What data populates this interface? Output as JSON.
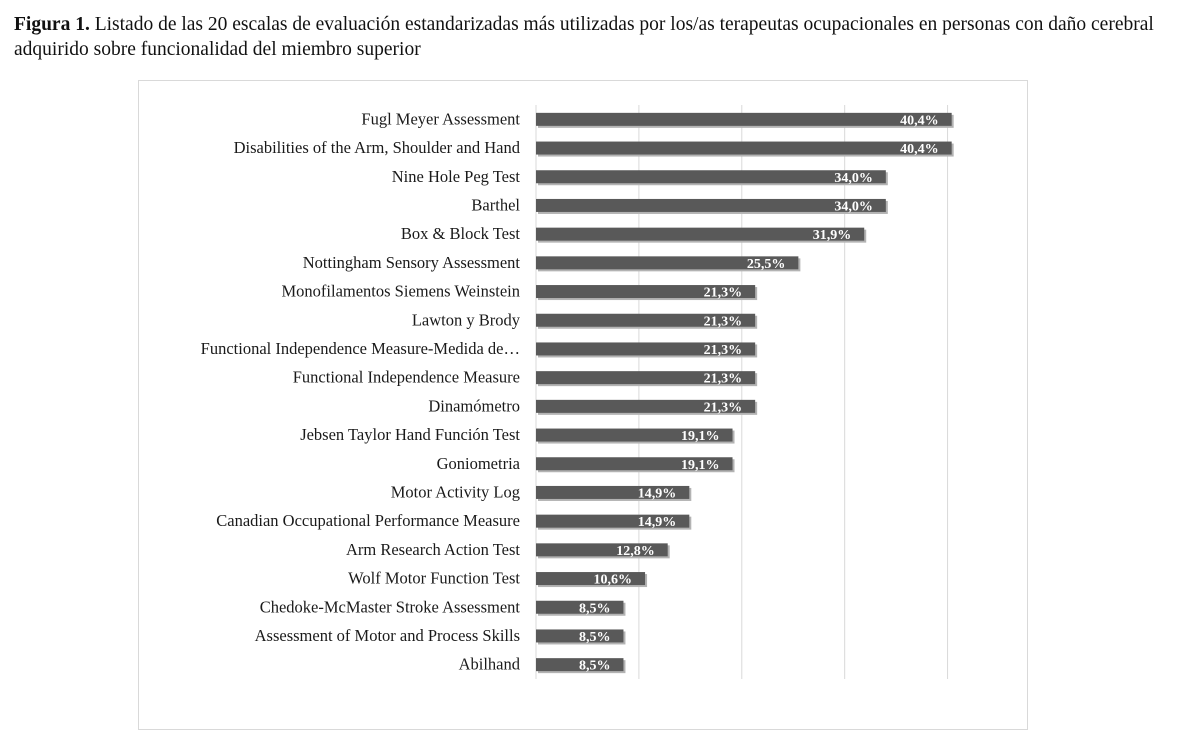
{
  "caption": {
    "figure_label": "Figura 1.",
    "text": " Listado de las 20 escalas de evaluación estandarizadas más utilizadas por los/as terapeutas ocupacionales en personas con daño cerebral adquirido sobre funcionalidad del miembro superior"
  },
  "chart_data": {
    "type": "bar",
    "orientation": "horizontal",
    "title": "",
    "xlabel": "",
    "ylabel": "",
    "xlim": [
      0,
      45
    ],
    "grid": true,
    "categories": [
      "Fugl Meyer Assessment",
      "Disabilities of the Arm, Shoulder and Hand",
      "Nine Hole Peg Test",
      "Barthel",
      "Box & Block Test",
      "Nottingham Sensory Assessment",
      "Monofilamentos Siemens Weinstein",
      "Lawton y Brody",
      "Functional Independence Measure-Medida de…",
      "Functional Independence Measure",
      "Dinamómetro",
      "Jebsen Taylor Hand Función Test",
      "Goniometria",
      "Motor Activity Log",
      "Canadian Occupational Performance Measure",
      "Arm Research Action Test",
      "Wolf Motor Function Test",
      "Chedoke-McMaster Stroke Assessment",
      "Assessment of Motor and Process Skills",
      "Abilhand"
    ],
    "values": [
      40.4,
      40.4,
      34.0,
      34.0,
      31.9,
      25.5,
      21.3,
      21.3,
      21.3,
      21.3,
      21.3,
      19.1,
      19.1,
      14.9,
      14.9,
      12.8,
      10.6,
      8.5,
      8.5,
      8.5
    ],
    "data_labels": [
      "40,4%",
      "40,4%",
      "34,0%",
      "34,0%",
      "31,9%",
      "25,5%",
      "21,3%",
      "21,3%",
      "21,3%",
      "21,3%",
      "21,3%",
      "19,1%",
      "19,1%",
      "14,9%",
      "14,9%",
      "12,8%",
      "10,6%",
      "8,5%",
      "8,5%",
      "8,5%"
    ],
    "colors": {
      "bar": "#595959",
      "bar_shadow": "#b3b3b3",
      "grid": "#d9d9d9",
      "label": "#ffffff"
    }
  }
}
